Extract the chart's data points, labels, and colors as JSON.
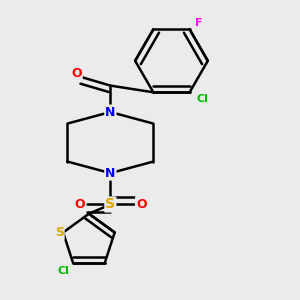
{
  "background_color": "#ebebeb",
  "atom_colors": {
    "C": "#000000",
    "N": "#0000ee",
    "O": "#ff0000",
    "S": "#ddaa00",
    "Cl": "#00bb00",
    "F": "#ff00ff"
  },
  "bond_color": "#000000",
  "bond_width": 1.8,
  "figsize": [
    3.0,
    3.0
  ],
  "dpi": 100
}
